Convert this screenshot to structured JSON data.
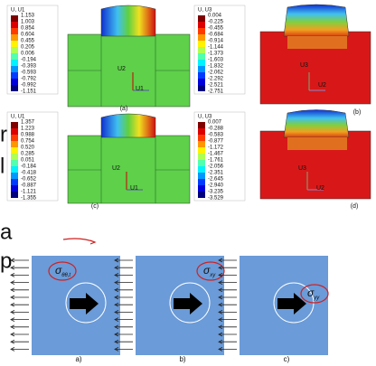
{
  "panels": [
    {
      "legend_title": "U, U1",
      "legend_values": [
        "1.153",
        "1.003",
        "0.854",
        "0.604",
        "0.455",
        "0.205",
        "0.006",
        "-0.194",
        "-0.393",
        "-0.593",
        "-0.792",
        "-0.992",
        "-1.151"
      ],
      "label": "(a)",
      "axes": [
        "U2",
        "U1"
      ]
    },
    {
      "legend_title": "U, U3",
      "legend_values": [
        "0.004",
        "-0.225",
        "-0.455",
        "-0.684",
        "-0.914",
        "-1.144",
        "-1.373",
        "-1.603",
        "-1.832",
        "-2.062",
        "-2.292",
        "-2.521",
        "-2.751"
      ],
      "label": "(b)",
      "axes": [
        "U3",
        "U2"
      ]
    },
    {
      "legend_title": "U, U1",
      "legend_values": [
        "1.357",
        "1.223",
        "0.988",
        "0.754",
        "0.520",
        "0.285",
        "0.051",
        "-0.184",
        "-0.418",
        "-0.652",
        "-0.887",
        "-1.121",
        "-1.355"
      ],
      "label": "(c)",
      "axes": [
        "U2",
        "U1"
      ]
    },
    {
      "legend_title": "U, U3",
      "legend_values": [
        "0.007",
        "-0.288",
        "-0.583",
        "-0.877",
        "-1.172",
        "-1.467",
        "-1.761",
        "-2.056",
        "-2.351",
        "-2.645",
        "-2.940",
        "-3.235",
        "-3.529"
      ],
      "label": "(d)",
      "axes": [
        "U3",
        "U2"
      ]
    }
  ],
  "edge_fragments": [
    "r",
    "l",
    "a",
    "p"
  ],
  "stress_panels": [
    {
      "label": "a)",
      "symbol": "σ",
      "subscript": "θθ,t"
    },
    {
      "label": "b)",
      "symbol": "σ",
      "subscript": "xy"
    },
    {
      "label": "c)",
      "symbol": "σ",
      "subscript": "yy"
    }
  ]
}
